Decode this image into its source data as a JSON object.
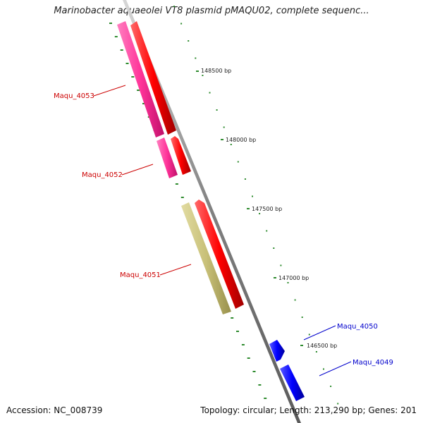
{
  "title": "Marinobacter aquaeolei VT8 plasmid pMAQU02, complete sequenc...",
  "footer": {
    "accession": "Accession: NC_008739",
    "summary": "Topology: circular; Length: 213,290 bp; Genes: 201"
  },
  "ticks": [
    {
      "label": "148500 bp"
    },
    {
      "label": "148000 bp"
    },
    {
      "label": "147500 bp"
    },
    {
      "label": "147000 bp"
    },
    {
      "label": "146500 bp"
    }
  ],
  "genes": [
    {
      "name": "Maqu_4053",
      "label_color": "#cc0000"
    },
    {
      "name": "Maqu_4052",
      "label_color": "#cc0000"
    },
    {
      "name": "Maqu_4051",
      "label_color": "#cc0000"
    },
    {
      "name": "Maqu_4050",
      "label_color": "#0000cc"
    },
    {
      "name": "Maqu_4049",
      "label_color": "#0000cc"
    }
  ],
  "colors": {
    "backbone": "#888888",
    "tick_dots": "#2e8b2e",
    "cds_forward": "#ff0000",
    "cds_reverse": "#0000ff",
    "feature_pink": "#ff3399",
    "feature_khaki": "#c8c078"
  }
}
